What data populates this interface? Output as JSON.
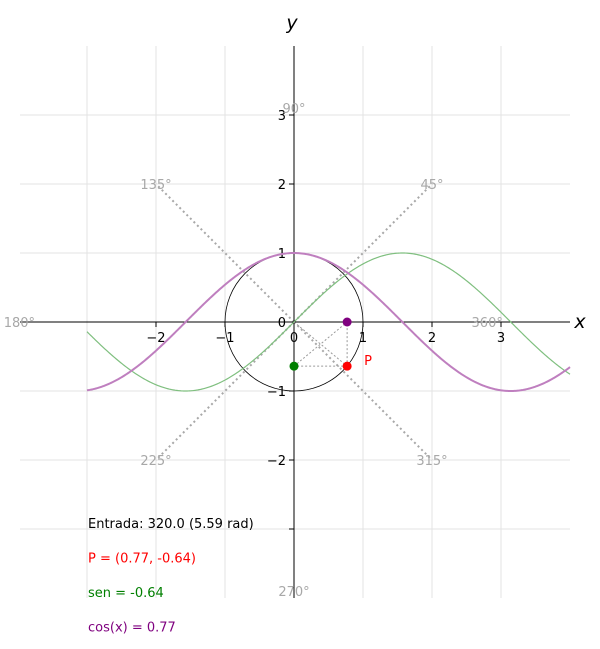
{
  "chart_data": {
    "type": "line",
    "xlabel": "x",
    "ylabel": "y",
    "xlim": [
      -4,
      4
    ],
    "ylim": [
      -4,
      4
    ],
    "grid": true,
    "x_ticks": [
      -2,
      -1,
      0,
      1,
      2,
      3
    ],
    "y_ticks": [
      -2,
      -1,
      0,
      1,
      2,
      3
    ],
    "x_tick_labels": [
      "−2",
      "−1",
      "0",
      "1",
      "2",
      "3"
    ],
    "y_tick_labels": [
      "−2",
      "−1",
      "0",
      "1",
      "2",
      "3"
    ],
    "series": [
      {
        "function": "sin",
        "x_range": [
          -3,
          4
        ],
        "color": "#7fbf7f"
      },
      {
        "function": "cos",
        "x_range": [
          -3,
          4
        ],
        "color": "#bf7fbf"
      }
    ],
    "unit_circle": {
      "radius": 1
    },
    "angle_rays": [
      {
        "label": "45°",
        "deg": 45
      },
      {
        "label": "135°",
        "deg": 135
      },
      {
        "label": "225°",
        "deg": 225
      },
      {
        "label": "315°",
        "deg": 315
      }
    ],
    "angle_labels": [
      {
        "text": "90°",
        "x": 0,
        "y": 3.1
      },
      {
        "text": "45°",
        "x": 2.0,
        "y": 2.0
      },
      {
        "text": "135°",
        "x": -2.0,
        "y": 2.0
      },
      {
        "text": "180°",
        "x": -3.98,
        "y": 0.0
      },
      {
        "text": "360°",
        "x": 2.8,
        "y": 0.0
      },
      {
        "text": "225°",
        "x": -2.0,
        "y": -2.0
      },
      {
        "text": "315°",
        "x": 2.0,
        "y": -2.0
      },
      {
        "text": "270°",
        "x": 0,
        "y": -3.9
      }
    ],
    "points": [
      {
        "name": "P",
        "label": "P",
        "x": 0.77,
        "y": -0.64,
        "color": "#ff0000"
      },
      {
        "name": "sin-point",
        "x": 0,
        "y": -0.64,
        "color": "#007f00"
      },
      {
        "name": "cos-point",
        "x": 0.77,
        "y": 0,
        "color": "#7f007f"
      }
    ],
    "annotations": [
      {
        "name": "input-angle",
        "text": "Entrada: 320.0 (5.59 rad)",
        "color": "#000000"
      },
      {
        "name": "point-coords",
        "text": "P = (0.77, -0.64)",
        "color": "#ff0000"
      },
      {
        "name": "sine-value",
        "text": "sen = -0.64",
        "color": "#007f00"
      },
      {
        "name": "cosine-value",
        "text": "cos(x) = 0.77",
        "color": "#7f007f"
      }
    ]
  }
}
